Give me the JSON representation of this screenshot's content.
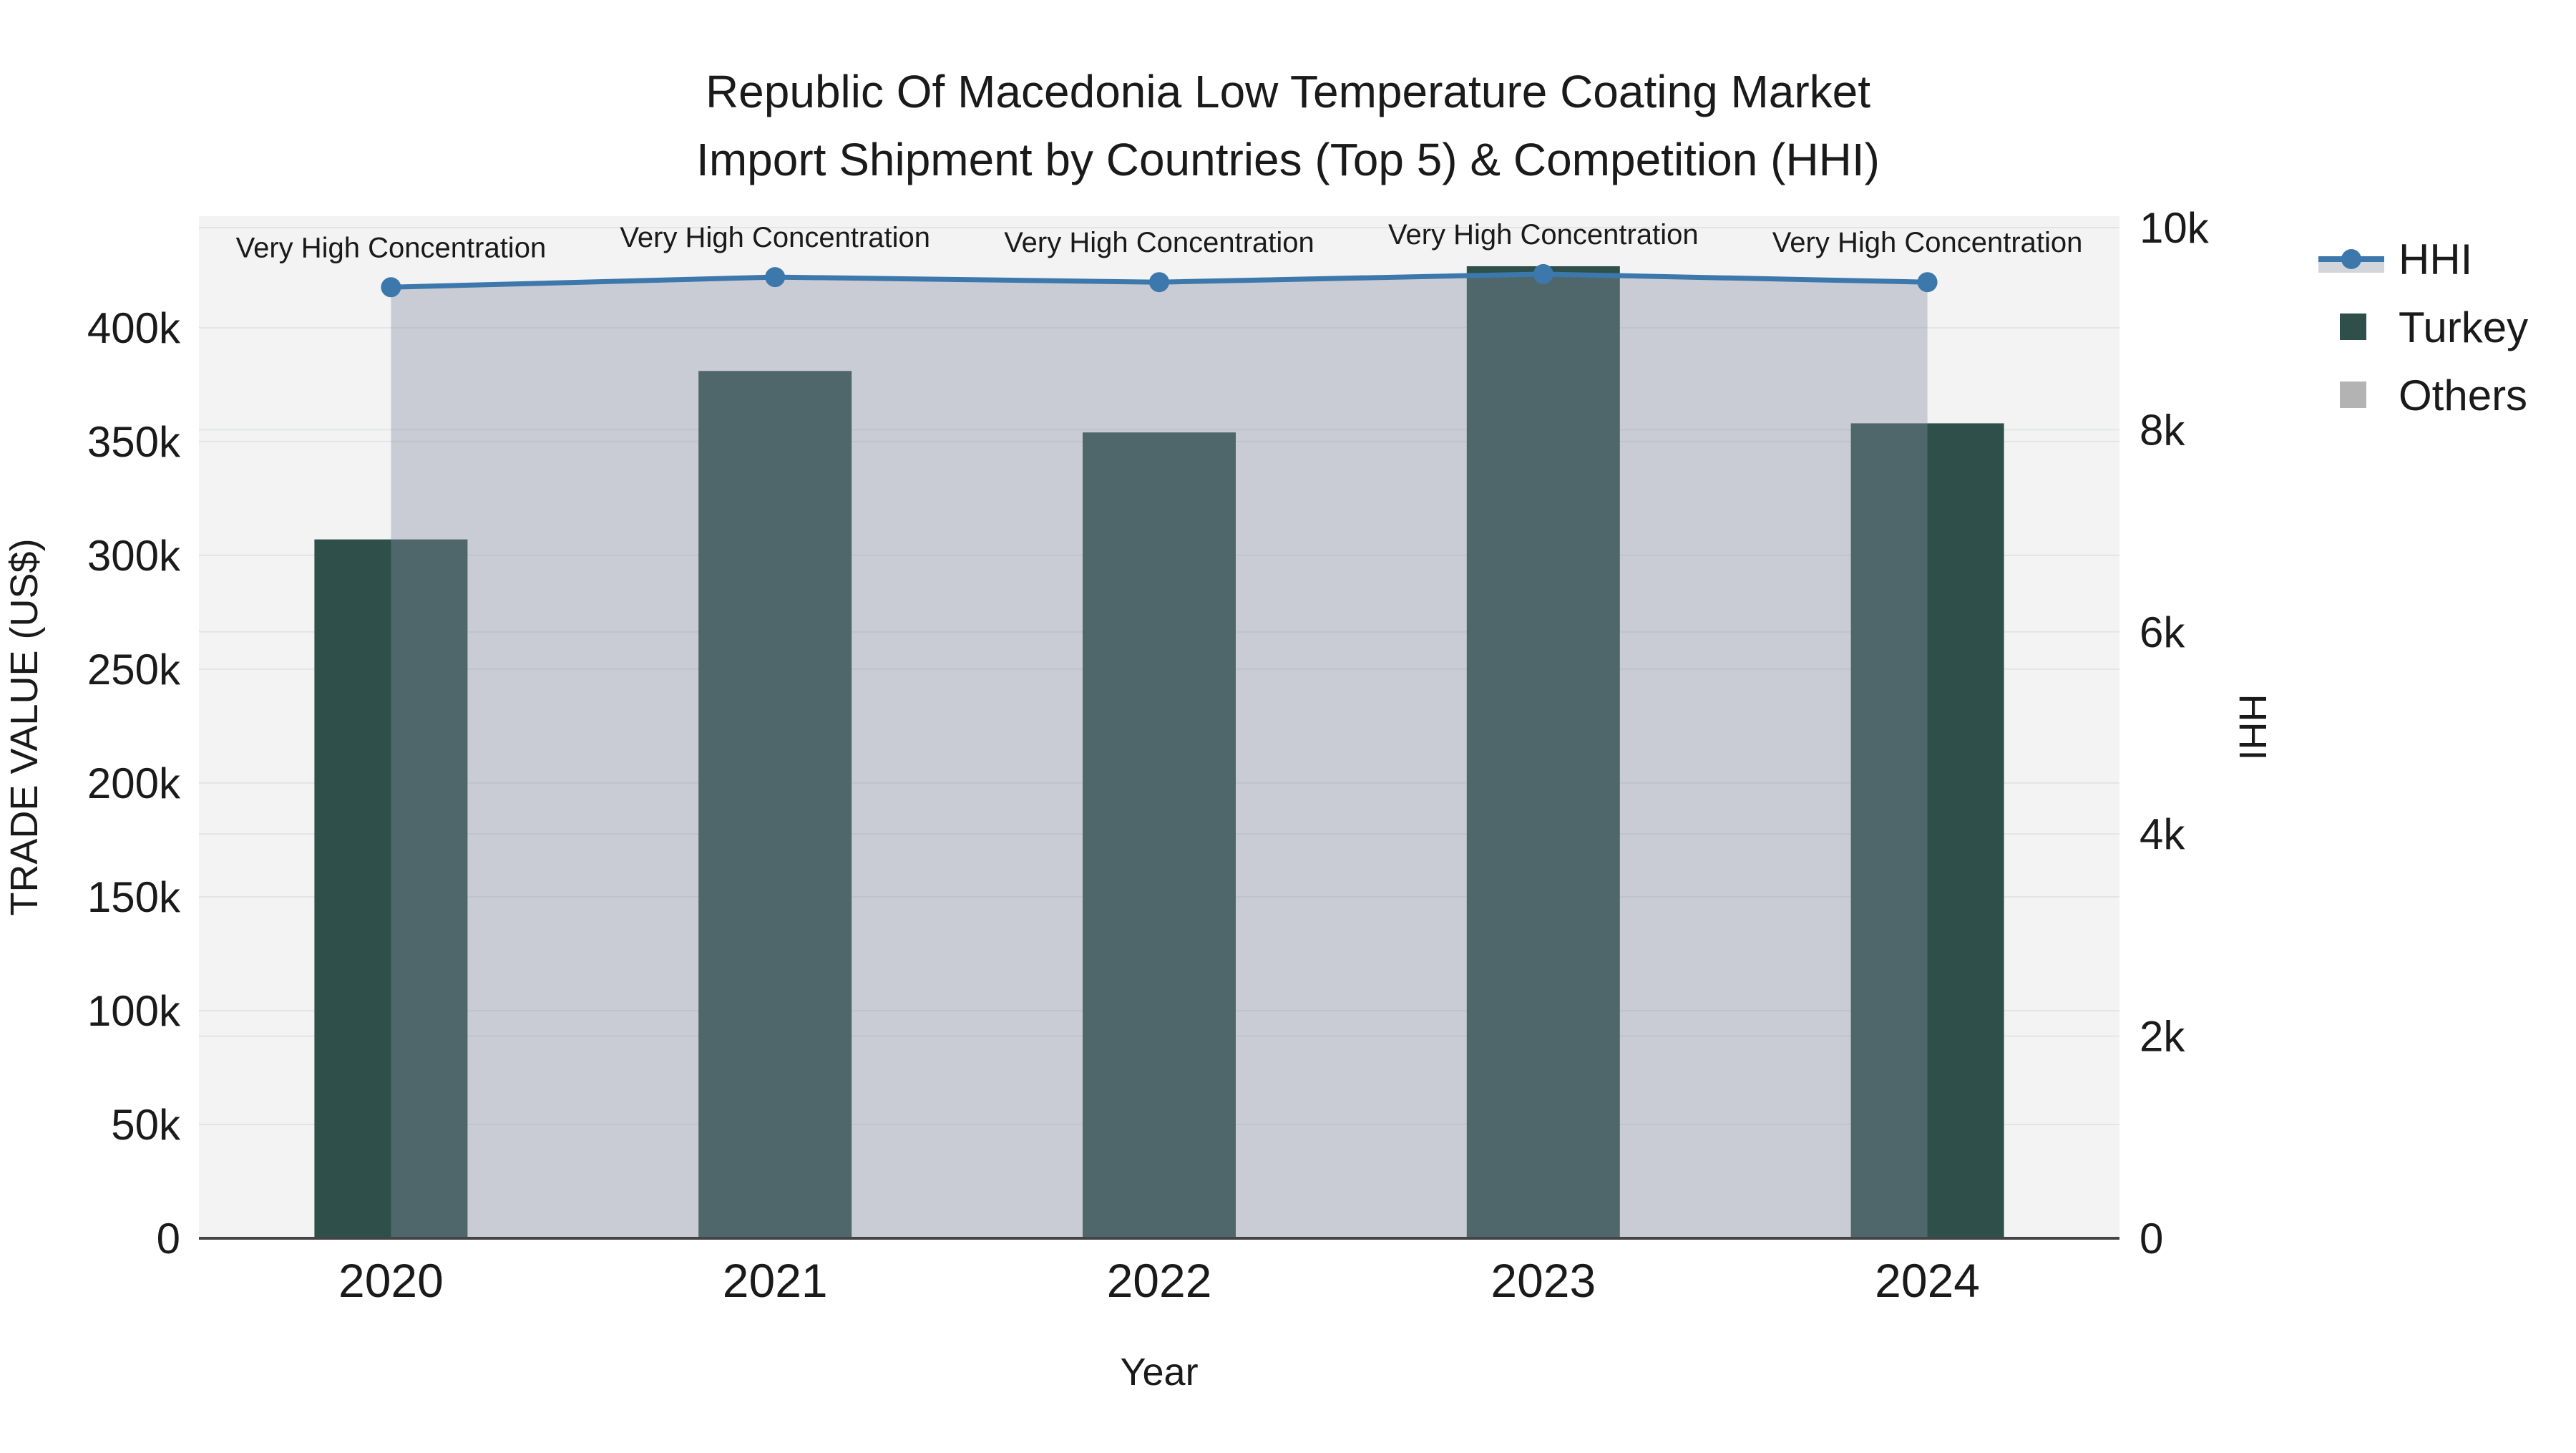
{
  "title": {
    "line1": "Republic Of Macedonia Low Temperature Coating Market",
    "line2": "Import Shipment by Countries (Top 5) & Competition (HHI)"
  },
  "axes": {
    "x_title": "Year",
    "y_left_title": "TRADE VALUE (US$)",
    "y_right_title": "HHI"
  },
  "legend": {
    "position": "right",
    "items": [
      {
        "label": "HHI",
        "type": "line-area",
        "color": "#3d78ac"
      },
      {
        "label": "Turkey",
        "type": "bar",
        "color": "#2e4f4a"
      },
      {
        "label": "Others",
        "type": "bar",
        "color": "#b3b3b3"
      }
    ]
  },
  "colors": {
    "bar_turkey": "#2e4f4a",
    "others": "#b3b3b3",
    "hhi_line": "#3d78ac",
    "hhi_area": "rgba(135,141,162,0.38)",
    "legend_area_swatch": "#d2d5da",
    "plot_bg": "#f3f3f3",
    "grid": "#e3e4e6",
    "axis_line": "#444444",
    "text": "#1a1a1a"
  },
  "chart_data": {
    "type": "bar",
    "title": "Republic Of Macedonia Low Temperature Coating Market Import Shipment by Countries (Top 5) & Competition (HHI)",
    "xlabel": "Year",
    "ylabel_left": "TRADE VALUE (US$)",
    "ylabel_right": "HHI",
    "categories": [
      "2020",
      "2021",
      "2022",
      "2023",
      "2024"
    ],
    "series": [
      {
        "name": "Turkey",
        "type": "bar",
        "axis": "left",
        "values": [
          307000,
          381000,
          354000,
          427000,
          358000
        ]
      },
      {
        "name": "Others",
        "type": "bar",
        "axis": "left",
        "values": [
          0,
          0,
          0,
          0,
          0
        ]
      },
      {
        "name": "HHI",
        "type": "line",
        "axis": "right",
        "area": true,
        "values": [
          9410,
          9510,
          9460,
          9540,
          9460
        ]
      }
    ],
    "annotations": [
      "Very High Concentration",
      "Very High Concentration",
      "Very High Concentration",
      "Very High Concentration",
      "Very High Concentration"
    ],
    "ylim_left": [
      0,
      449000
    ],
    "ylim_right": [
      0,
      10113
    ],
    "left_ticks": {
      "values": [
        0,
        50000,
        100000,
        150000,
        200000,
        250000,
        300000,
        350000,
        400000
      ],
      "labels": [
        "0",
        "50k",
        "100k",
        "150k",
        "200k",
        "250k",
        "300k",
        "350k",
        "400k"
      ]
    },
    "right_ticks": {
      "values": [
        0,
        2000,
        4000,
        6000,
        8000,
        10000
      ],
      "labels": [
        "0",
        "2k",
        "4k",
        "6k",
        "8k",
        "10k"
      ]
    },
    "grid": true,
    "legend_position": "right"
  }
}
